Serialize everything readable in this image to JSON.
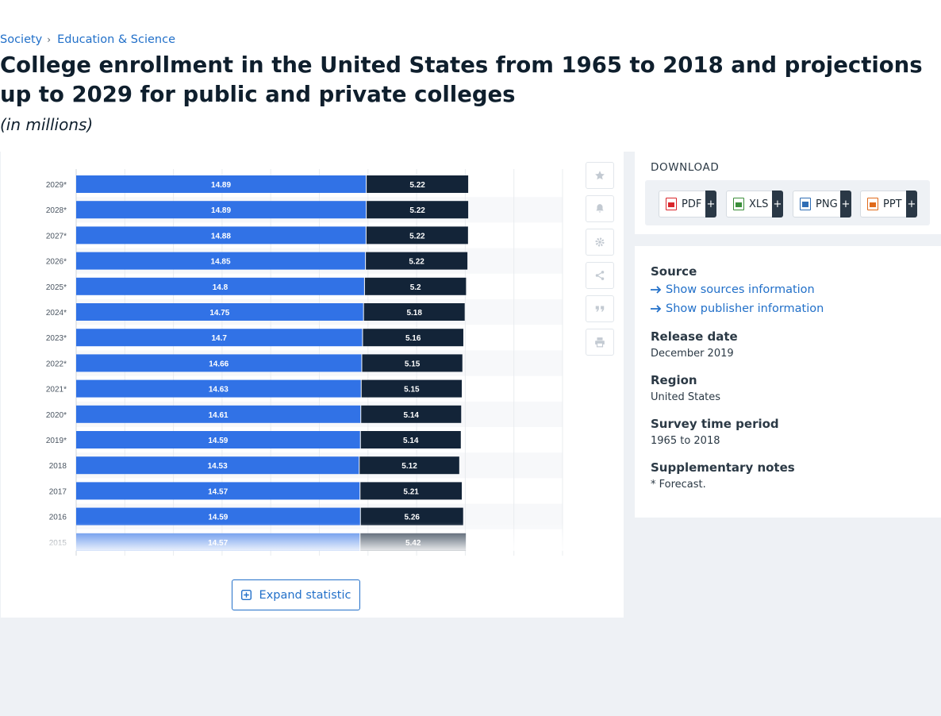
{
  "breadcrumb": {
    "items": [
      "Society",
      "Education & Science"
    ]
  },
  "page": {
    "title": "College enrollment in the United States from 1965 to 2018 and projections up to 2029 for public and private colleges",
    "subtitle": "(in millions)"
  },
  "toolbar": {
    "icons": [
      "star-icon",
      "bell-icon",
      "gear-icon",
      "share-icon",
      "quote-icon",
      "print-icon"
    ]
  },
  "expand": {
    "label": "Expand statistic"
  },
  "download": {
    "title": "DOWNLOAD",
    "buttons": [
      {
        "label": "PDF",
        "plus": "+",
        "color": "#d9262b"
      },
      {
        "label": "XLS",
        "plus": "+",
        "color": "#3b8e3a"
      },
      {
        "label": "PNG",
        "plus": "+",
        "color": "#2f6db5"
      },
      {
        "label": "PPT",
        "plus": "+",
        "color": "#e06a1b"
      }
    ]
  },
  "info": {
    "source_heading": "Source",
    "show_sources": "Show sources information",
    "show_publisher": "Show publisher information",
    "release_heading": "Release date",
    "release_value": "December 2019",
    "region_heading": "Region",
    "region_value": "United States",
    "survey_heading": "Survey time period",
    "survey_value": "1965 to 2018",
    "notes_heading": "Supplementary notes",
    "notes_value": "* Forecast."
  },
  "colors": {
    "series_public": "#3172e6",
    "series_private": "#132438",
    "link": "#2270c9"
  },
  "chart_data": {
    "type": "bar",
    "orientation": "horizontal",
    "stacked": true,
    "categories": [
      "2029*",
      "2028*",
      "2027*",
      "2026*",
      "2025*",
      "2024*",
      "2023*",
      "2022*",
      "2021*",
      "2020*",
      "2019*",
      "2018",
      "2017",
      "2016",
      "2015"
    ],
    "series": [
      {
        "values": [
          14.89,
          14.89,
          14.88,
          14.85,
          14.8,
          14.75,
          14.7,
          14.66,
          14.63,
          14.61,
          14.59,
          14.53,
          14.57,
          14.59,
          14.57
        ]
      },
      {
        "values": [
          5.22,
          5.22,
          5.22,
          5.22,
          5.2,
          5.18,
          5.16,
          5.15,
          5.15,
          5.14,
          5.14,
          5.12,
          5.21,
          5.26,
          5.42
        ]
      }
    ],
    "data_labels": [
      [
        "14.89",
        "14.89",
        "14.88",
        "14.85",
        "14.8",
        "14.75",
        "14.7",
        "14.66",
        "14.63",
        "14.61",
        "14.59",
        "14.53",
        "14.57",
        "14.59",
        "14.57"
      ],
      [
        "5.22",
        "5.22",
        "5.22",
        "5.22",
        "5.2",
        "5.18",
        "5.16",
        "5.15",
        "5.15",
        "5.14",
        "5.14",
        "5.12",
        "5.21",
        "5.26",
        "5.42"
      ]
    ],
    "xlim": [
      0,
      25
    ],
    "grid": true,
    "legend": "none"
  }
}
